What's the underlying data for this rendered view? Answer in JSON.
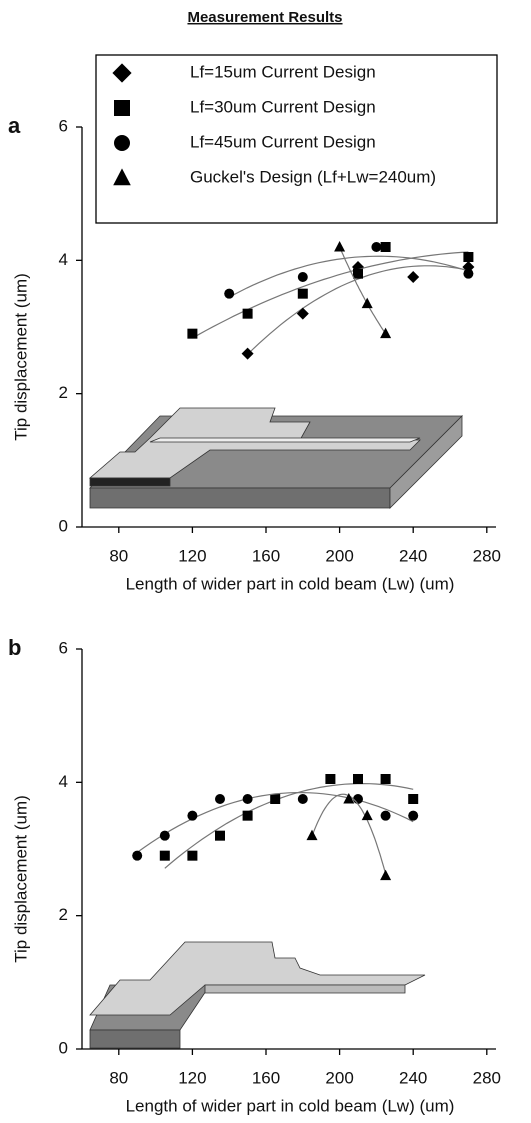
{
  "chart_data": [
    {
      "type": "scatter",
      "title": "Measurement Results",
      "panel_label": "a",
      "xlabel": "Length of wider part in cold beam (Lw)   (um)",
      "ylabel": "Tip displacement (um)",
      "xlim": [
        60,
        285
      ],
      "ylim": [
        0,
        6
      ],
      "xticks": [
        80,
        120,
        160,
        200,
        240,
        280
      ],
      "yticks": [
        0,
        2,
        4,
        6
      ],
      "series": [
        {
          "name": "Lf=15um Current Design",
          "marker": "diamond",
          "color": "#000000",
          "x": [
            150,
            180,
            210,
            240,
            270
          ],
          "values": [
            2.6,
            3.2,
            3.9,
            3.75,
            3.9
          ]
        },
        {
          "name": "Lf=30um Current Design",
          "marker": "square",
          "color": "#000000",
          "x": [
            120,
            150,
            180,
            210,
            225,
            270
          ],
          "values": [
            2.9,
            3.2,
            3.5,
            3.8,
            4.2,
            4.05
          ]
        },
        {
          "name": "Lf=45um Current Design",
          "marker": "circle",
          "color": "#000000",
          "x": [
            140,
            180,
            220,
            270
          ],
          "values": [
            3.5,
            3.75,
            4.2,
            3.8
          ]
        },
        {
          "name": "Guckel's Design (Lf+Lw=240um)",
          "marker": "triangle",
          "color": "#000000",
          "x": [
            200,
            215,
            225
          ],
          "values": [
            4.2,
            3.35,
            2.9
          ]
        }
      ]
    },
    {
      "type": "scatter",
      "panel_label": "b",
      "xlabel": "Length of wider part in cold beam (Lw)   (um)",
      "ylabel": "Tip displacement (um)",
      "xlim": [
        60,
        285
      ],
      "ylim": [
        0,
        6
      ],
      "xticks": [
        80,
        120,
        160,
        200,
        240,
        280
      ],
      "yticks": [
        0,
        2,
        4,
        6
      ],
      "series": [
        {
          "marker": "square",
          "color": "#000000",
          "x": [
            105,
            120,
            135,
            150,
            165,
            195,
            210,
            225,
            240
          ],
          "values": [
            2.9,
            2.9,
            3.2,
            3.5,
            3.75,
            4.05,
            4.05,
            4.05,
            3.75
          ]
        },
        {
          "marker": "circle",
          "color": "#000000",
          "x": [
            90,
            105,
            120,
            135,
            150,
            180,
            210,
            225,
            240
          ],
          "values": [
            2.9,
            3.2,
            3.5,
            3.75,
            3.75,
            3.75,
            3.75,
            3.5,
            3.5
          ]
        },
        {
          "marker": "triangle",
          "color": "#000000",
          "x": [
            185,
            205,
            215,
            225
          ],
          "values": [
            3.2,
            3.75,
            3.5,
            2.6
          ]
        }
      ]
    }
  ]
}
